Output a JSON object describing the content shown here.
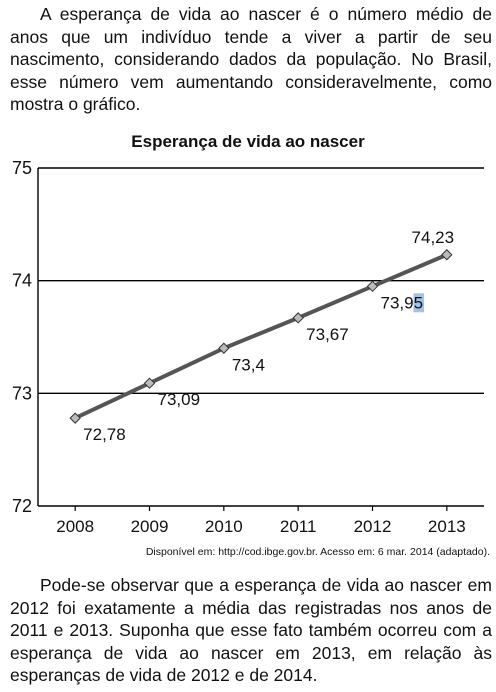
{
  "intro_text": "A esperança de vida ao nascer é o número médio de anos que um indivíduo tende a viver a partir de seu nascimento, considerando dados da população. No Brasil, esse número vem aumentando consideravelmente, como mostra o gráfico.",
  "source_note": "Disponível em: http://cod.ibge.gov.br. Acesso em: 6 mar. 2014 (adaptado).",
  "outro_text": "Pode-se observar que a esperança de vida ao nascer em 2012 foi exatamente a média das registradas nos anos de 2011 e 2013. Suponha que esse fato também ocorreu com a esperança de vida ao nascer em 2013, em relação às esperanças de vida de 2012 e de 2014.",
  "chart_data": {
    "type": "line",
    "title": "Esperança de vida ao nascer",
    "xlabel": "",
    "ylabel": "",
    "categories": [
      "2008",
      "2009",
      "2010",
      "2011",
      "2012",
      "2013"
    ],
    "values": [
      72.78,
      73.09,
      73.4,
      73.67,
      73.95,
      74.23
    ],
    "value_labels": [
      "72,78",
      "73,09",
      "73,4",
      "73,67",
      "73,95",
      "74,23"
    ],
    "yticks": [
      72,
      73,
      74,
      75
    ],
    "ylim": [
      72,
      75
    ],
    "grid": "horizontal",
    "line_color": "#555555",
    "marker": "diamond",
    "highlight_color": "#9fc3e8"
  }
}
